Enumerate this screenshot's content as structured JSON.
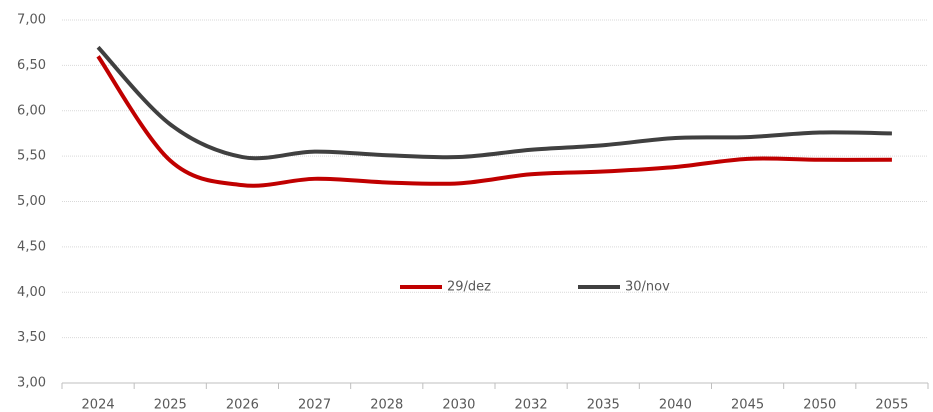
{
  "chart_data": {
    "type": "line",
    "categories": [
      "2024",
      "2025",
      "2026",
      "2027",
      "2028",
      "2030",
      "2032",
      "2035",
      "2040",
      "2045",
      "2050",
      "2055"
    ],
    "series": [
      {
        "name": "29/dez",
        "color": "#c00000",
        "values": [
          6.6,
          5.45,
          5.18,
          5.25,
          5.21,
          5.2,
          5.3,
          5.33,
          5.38,
          5.47,
          5.46,
          5.46
        ]
      },
      {
        "name": "30/nov",
        "color": "#404040",
        "values": [
          6.7,
          5.85,
          5.49,
          5.55,
          5.51,
          5.49,
          5.57,
          5.62,
          5.7,
          5.71,
          5.76,
          5.75
        ]
      }
    ],
    "ylim": [
      3,
      7
    ],
    "yticks": [
      {
        "value": 3,
        "label": "3,00"
      },
      {
        "value": 3.5,
        "label": "3,50"
      },
      {
        "value": 4,
        "label": "4,00"
      },
      {
        "value": 4.5,
        "label": "4,50"
      },
      {
        "value": 5,
        "label": "5,00"
      },
      {
        "value": 5.5,
        "label": "5,50"
      },
      {
        "value": 6,
        "label": "6,00"
      },
      {
        "value": 6.5,
        "label": "6,50"
      },
      {
        "value": 7,
        "label": "7,00"
      }
    ],
    "grid": true,
    "legend": "center"
  }
}
